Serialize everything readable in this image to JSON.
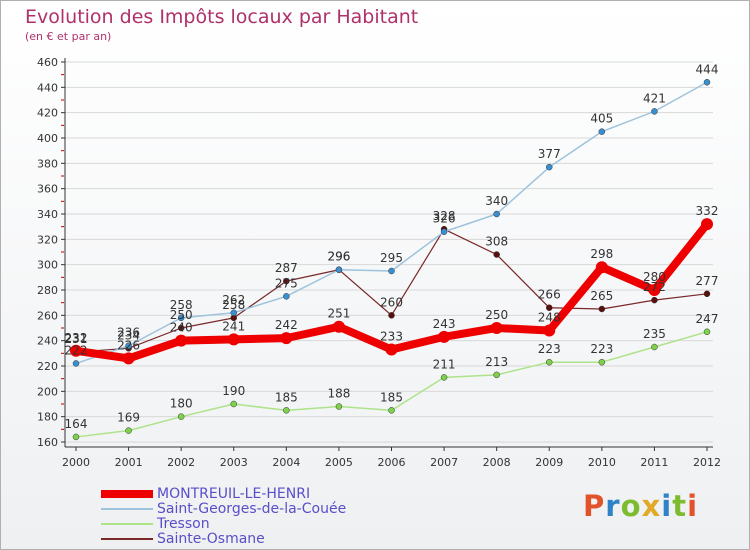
{
  "title": "Evolution des Impôts locaux par Habitant",
  "subtitle": "(en € et par an)",
  "logo": {
    "text": "Proxiti",
    "letter_colors": [
      "#e2532b",
      "#2d83c5",
      "#7dbb2f",
      "#e2a927",
      "#2d83c5",
      "#7dbb2f",
      "#e2532b"
    ]
  },
  "colors": {
    "axis": "#333333",
    "grid": "#d8d8d8",
    "axis_ticks_red": "#c00000"
  },
  "chart_data": {
    "type": "line",
    "title": "Evolution des Impôts locaux par Habitant",
    "subtitle": "(en € et par an)",
    "xlabel": "",
    "ylabel": "",
    "x": [
      "2000",
      "2001",
      "2002",
      "2003",
      "2004",
      "2005",
      "2006",
      "2007",
      "2008",
      "2009",
      "2010",
      "2011",
      "2012"
    ],
    "ylim": [
      160,
      460
    ],
    "yticks": [
      160,
      180,
      200,
      220,
      240,
      260,
      280,
      300,
      320,
      340,
      360,
      380,
      400,
      420,
      440,
      460
    ],
    "grid": "horizontal",
    "legend_position": "bottom-left",
    "series": [
      {
        "name": "MONTREUIL-LE-HENRI",
        "color": "#ee0000",
        "marker": "#ee0000",
        "width": 8,
        "values": [
          232,
          226,
          240,
          241,
          242,
          251,
          233,
          243,
          250,
          248,
          298,
          280,
          332
        ]
      },
      {
        "name": "Saint-Georges-de-la-Couée",
        "color": "#9ec3dc",
        "marker": "#3a8fd0",
        "width": 1.5,
        "values": [
          222,
          236,
          258,
          262,
          275,
          296,
          295,
          326,
          340,
          377,
          405,
          421,
          444
        ]
      },
      {
        "name": "Tresson",
        "color": "#aee38a",
        "marker": "#7ed14a",
        "width": 1.5,
        "values": [
          164,
          169,
          180,
          190,
          185,
          188,
          185,
          211,
          213,
          223,
          223,
          235,
          247
        ]
      },
      {
        "name": "Sainte-Osmane",
        "color": "#7a2828",
        "marker": "#5a0f0f",
        "width": 1.2,
        "values": [
          231,
          234,
          250,
          258,
          287,
          296,
          260,
          328,
          308,
          266,
          265,
          272,
          277
        ]
      }
    ]
  }
}
